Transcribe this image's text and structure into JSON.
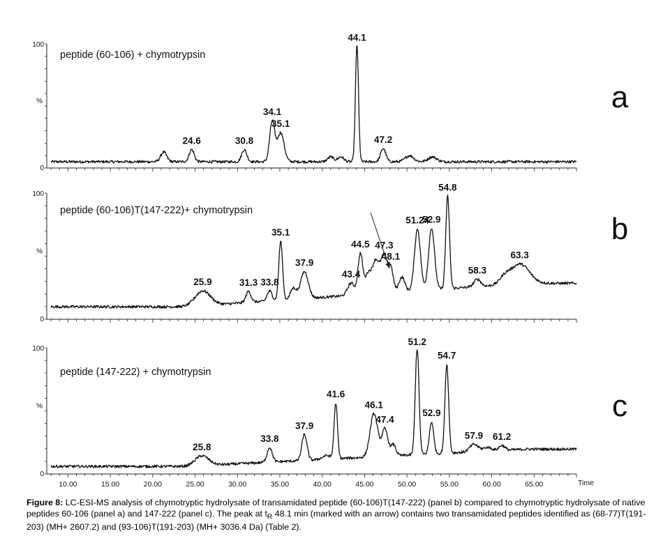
{
  "chart_data": {
    "type": "line",
    "x_axis": {
      "label": "Time",
      "range": [
        7.5,
        70.0
      ],
      "ticks": [
        "10.00",
        "15.00",
        "20.00",
        "25.00",
        "30.00",
        "35.00",
        "40.00",
        "45.00",
        "50.00",
        "55.00",
        "60.00",
        "65.00"
      ],
      "tick_values": [
        10,
        15,
        20,
        25,
        30,
        35,
        40,
        45,
        50,
        55,
        60,
        65
      ]
    },
    "y_axis": {
      "ticks": [
        "100",
        "%",
        "0"
      ],
      "range": [
        0,
        100
      ]
    },
    "panels": [
      {
        "letter": "a",
        "title": "peptide (60-106) + chymotrypsin",
        "baseline_start": 4,
        "baseline_end": 4,
        "peaks": [
          {
            "x": 21.3,
            "height": 8,
            "width": 0.35
          },
          {
            "x": 24.6,
            "height": 10,
            "width": 0.3,
            "label": "24.6"
          },
          {
            "x": 30.8,
            "height": 10,
            "width": 0.3,
            "label": "30.8"
          },
          {
            "x": 34.1,
            "height": 33,
            "width": 0.3,
            "label": "34.1"
          },
          {
            "x": 35.1,
            "height": 24,
            "width": 0.4,
            "label": "35.1"
          },
          {
            "x": 41.0,
            "height": 4,
            "width": 0.35
          },
          {
            "x": 42.2,
            "height": 4,
            "width": 0.35
          },
          {
            "x": 44.1,
            "height": 97,
            "width": 0.18,
            "label": "44.1"
          },
          {
            "x": 47.2,
            "height": 11,
            "width": 0.3,
            "label": "47.2"
          },
          {
            "x": 50.3,
            "height": 5,
            "width": 0.5
          },
          {
            "x": 53.0,
            "height": 4,
            "width": 0.5
          }
        ]
      },
      {
        "letter": "b",
        "title": "peptide (60-106)T(147-222)+ chymotrypsin",
        "baseline_start": 9,
        "baseline_end": 28,
        "arrow_target": 48.1,
        "peaks": [
          {
            "x": 25.9,
            "height": 12,
            "width": 0.9,
            "label": "25.9"
          },
          {
            "x": 31.3,
            "height": 9,
            "width": 0.3,
            "label": "31.3"
          },
          {
            "x": 33.8,
            "height": 8,
            "width": 0.3,
            "label": "33.8"
          },
          {
            "x": 35.1,
            "height": 48,
            "width": 0.22,
            "label": "35.1"
          },
          {
            "x": 36.6,
            "height": 9,
            "width": 0.35
          },
          {
            "x": 37.9,
            "height": 22,
            "width": 0.45,
            "label": "37.9"
          },
          {
            "x": 43.4,
            "height": 10,
            "width": 0.4,
            "label": "43.4"
          },
          {
            "x": 44.5,
            "height": 33,
            "width": 0.28,
            "label": "44.5"
          },
          {
            "x": 45.4,
            "height": 16,
            "width": 0.35
          },
          {
            "x": 46.3,
            "height": 26,
            "width": 0.4
          },
          {
            "x": 47.3,
            "height": 30,
            "width": 0.4,
            "label": "47.3"
          },
          {
            "x": 48.1,
            "height": 18,
            "width": 0.3,
            "label": "48.1"
          },
          {
            "x": 49.4,
            "height": 12,
            "width": 0.35
          },
          {
            "x": 51.24,
            "height": 50,
            "width": 0.35,
            "label": "51.24"
          },
          {
            "x": 52.9,
            "height": 50,
            "width": 0.35,
            "label": "52.9"
          },
          {
            "x": 54.8,
            "height": 75,
            "width": 0.22,
            "label": "54.8"
          },
          {
            "x": 58.3,
            "height": 6,
            "width": 0.4,
            "label": "58.3"
          },
          {
            "x": 61.5,
            "height": 5,
            "width": 0.6
          },
          {
            "x": 63.3,
            "height": 16,
            "width": 1.1,
            "label": "63.3"
          }
        ]
      },
      {
        "letter": "c",
        "title": "peptide (147-222) + chymotrypsin",
        "baseline_start": 5,
        "baseline_end": 19,
        "peaks": [
          {
            "x": 25.8,
            "height": 8,
            "width": 0.8,
            "label": "25.8"
          },
          {
            "x": 33.8,
            "height": 12,
            "width": 0.3,
            "label": "33.8"
          },
          {
            "x": 37.9,
            "height": 21,
            "width": 0.3,
            "label": "37.9"
          },
          {
            "x": 40.5,
            "height": 3,
            "width": 0.5
          },
          {
            "x": 41.6,
            "height": 45,
            "width": 0.2,
            "label": "41.6"
          },
          {
            "x": 46.1,
            "height": 35,
            "width": 0.45,
            "label": "46.1"
          },
          {
            "x": 47.4,
            "height": 22,
            "width": 0.35,
            "label": "47.4"
          },
          {
            "x": 48.4,
            "height": 9,
            "width": 0.3
          },
          {
            "x": 51.2,
            "height": 87,
            "width": 0.22,
            "label": "51.2"
          },
          {
            "x": 52.9,
            "height": 26,
            "width": 0.25,
            "label": "52.9"
          },
          {
            "x": 54.7,
            "height": 72,
            "width": 0.22,
            "label": "54.7"
          },
          {
            "x": 57.9,
            "height": 6,
            "width": 0.5,
            "label": "57.9"
          },
          {
            "x": 59.5,
            "height": 3,
            "width": 0.5
          },
          {
            "x": 61.2,
            "height": 4,
            "width": 0.35,
            "label": "61.2"
          }
        ]
      }
    ]
  },
  "caption": {
    "label": "Figure 8:",
    "text_before": " LC-ESI-MS analysis of chymotryptic hydrolysate of transamidated peptide (60-106)T(147-222) (panel b) compared to chymotryptic hydrolysate of native peptides 60-106 (panel a) and 147-222 (panel c). The peak at t",
    "subscript": "R",
    "text_after": " 48.1 min (marked with an arrow) contains two transamidated peptides identified as (68-77)T(191-203) (MH+ 2607.2) and (93-106)T(191-203) (MH+ 3036.4 Da) (Table 2)."
  }
}
